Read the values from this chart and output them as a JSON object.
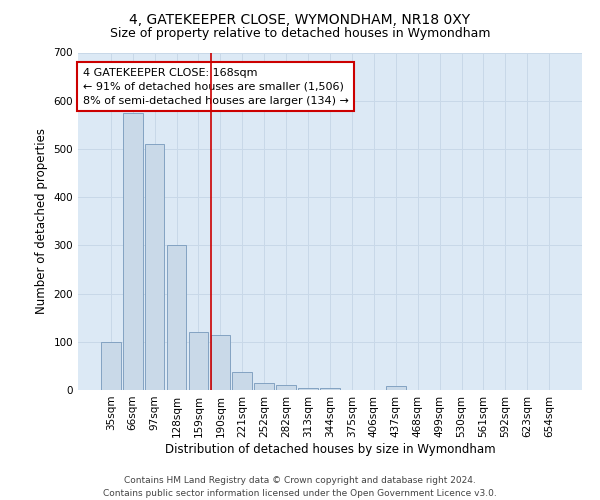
{
  "title": "4, GATEKEEPER CLOSE, WYMONDHAM, NR18 0XY",
  "subtitle": "Size of property relative to detached houses in Wymondham",
  "xlabel": "Distribution of detached houses by size in Wymondham",
  "ylabel": "Number of detached properties",
  "categories": [
    "35sqm",
    "66sqm",
    "97sqm",
    "128sqm",
    "159sqm",
    "190sqm",
    "221sqm",
    "252sqm",
    "282sqm",
    "313sqm",
    "344sqm",
    "375sqm",
    "406sqm",
    "437sqm",
    "468sqm",
    "499sqm",
    "530sqm",
    "561sqm",
    "592sqm",
    "623sqm",
    "654sqm"
  ],
  "values": [
    100,
    575,
    510,
    300,
    120,
    115,
    38,
    15,
    10,
    5,
    5,
    0,
    0,
    8,
    0,
    0,
    0,
    0,
    0,
    0,
    0
  ],
  "bar_color": "#c9d9e8",
  "bar_edge_color": "#7799bb",
  "bar_width": 0.9,
  "ylim": [
    0,
    700
  ],
  "yticks": [
    0,
    100,
    200,
    300,
    400,
    500,
    600,
    700
  ],
  "property_line_x": 4.55,
  "property_line_color": "#cc0000",
  "annotation_text": "4 GATEKEEPER CLOSE: 168sqm\n← 91% of detached houses are smaller (1,506)\n8% of semi-detached houses are larger (134) →",
  "annotation_box_color": "#ffffff",
  "annotation_box_edge_color": "#cc0000",
  "footer_line1": "Contains HM Land Registry data © Crown copyright and database right 2024.",
  "footer_line2": "Contains public sector information licensed under the Open Government Licence v3.0.",
  "grid_color": "#c8d8e8",
  "background_color": "#dce9f5",
  "title_fontsize": 10,
  "subtitle_fontsize": 9,
  "axis_label_fontsize": 8.5,
  "tick_fontsize": 7.5,
  "annotation_fontsize": 8,
  "footer_fontsize": 6.5
}
